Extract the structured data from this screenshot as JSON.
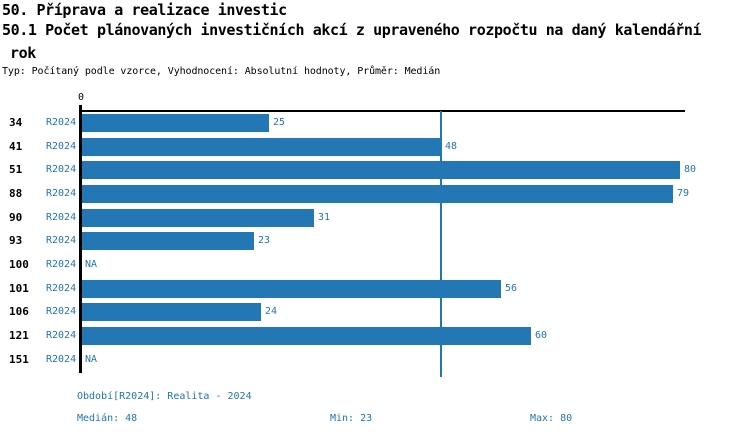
{
  "header": {
    "title": "50. Příprava a realizace investic",
    "indicator_line1": "50.1 Počet plánovaných investičních akcí z upraveného rozpočtu na daný kalendářní",
    "indicator_line2": "rok",
    "meta": "Typ: Počítaný podle vzorce, Vyhodnocení: Absolutní hodnoty, Průměr: Medián"
  },
  "chart_data": {
    "type": "bar",
    "orientation": "horizontal",
    "title": "50.1 Počet plánovaných investičních akcí z upraveného rozpočtu na daný kalendářní rok",
    "categories": [
      "34",
      "41",
      "51",
      "88",
      "90",
      "93",
      "100",
      "101",
      "106",
      "121",
      "151"
    ],
    "series": [
      {
        "name": "R2024",
        "values": [
          25,
          48,
          80,
          79,
          31,
          23,
          null,
          56,
          24,
          60,
          null
        ]
      }
    ],
    "value_labels": [
      "25",
      "48",
      "80",
      "79",
      "31",
      "23",
      "NA",
      "56",
      "24",
      "60",
      "NA"
    ],
    "na_label": "NA",
    "zero_label": "0",
    "xlim": [
      0,
      81
    ],
    "median": 48,
    "min": 23,
    "max": 80,
    "grid": "off",
    "legend": "none",
    "median_line": true
  },
  "footer": {
    "period_info": "Období[R2024]: Realita - 2024",
    "median_label": "Medián: 48",
    "min_label": "Min: 23",
    "max_label": "Max: 80"
  },
  "colors": {
    "bar": "#2277B4",
    "blue_text": "#2176B4",
    "median_line": "#2176B4",
    "axis": "#000000",
    "background": "#FFFFFF"
  }
}
